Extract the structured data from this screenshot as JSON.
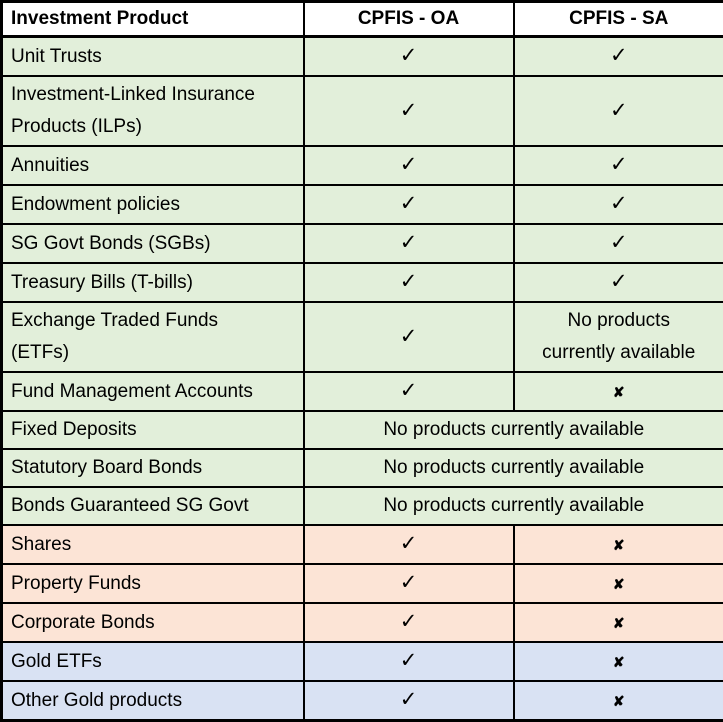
{
  "title": "CPFIS investment product availability table",
  "colors": {
    "green": "#e2efda",
    "orange": "#fce4d6",
    "blue": "#d9e2f3",
    "header_bg": "#ffffff",
    "border": "#000000",
    "text": "#000000"
  },
  "symbols": {
    "check": "✓",
    "cross": "✘"
  },
  "table": {
    "headers": [
      "Investment Product",
      "CPFIS - OA",
      "CPFIS - SA"
    ],
    "rows": [
      {
        "product": "Unit Trusts",
        "oa": "✓",
        "sa": "✓",
        "section": "green"
      },
      {
        "product": "Investment-Linked Insurance\nProducts (ILPs)",
        "oa": "✓",
        "sa": "✓",
        "section": "green"
      },
      {
        "product": "Annuities",
        "oa": "✓",
        "sa": "✓",
        "section": "green"
      },
      {
        "product": "Endowment policies",
        "oa": "✓",
        "sa": "✓",
        "section": "green"
      },
      {
        "product": "SG Govt Bonds (SGBs)",
        "oa": "✓",
        "sa": "✓",
        "section": "green"
      },
      {
        "product": "Treasury Bills (T-bills)",
        "oa": "✓",
        "sa": "✓",
        "section": "green"
      },
      {
        "product": "Exchange Traded Funds\n(ETFs)",
        "oa": "✓",
        "sa": "No products\ncurrently available",
        "section": "green"
      },
      {
        "product": "Fund Management Accounts",
        "oa": "✓",
        "sa": "✘",
        "section": "green"
      },
      {
        "product": "Fixed Deposits",
        "merged": true,
        "value": "No products currently available",
        "section": "green"
      },
      {
        "product": "Statutory Board Bonds",
        "merged": true,
        "value": "No products currently available",
        "section": "green"
      },
      {
        "product": "Bonds Guaranteed SG Govt",
        "merged": true,
        "value": "No products currently available",
        "section": "green"
      },
      {
        "product": "Shares",
        "oa": "✓",
        "sa": "✘",
        "section": "orange"
      },
      {
        "product": "Property Funds",
        "oa": "✓",
        "sa": "✘",
        "section": "orange"
      },
      {
        "product": "Corporate Bonds",
        "oa": "✓",
        "sa": "✘",
        "section": "orange"
      },
      {
        "product": "Gold ETFs",
        "oa": "✓",
        "sa": "✘",
        "section": "blue"
      },
      {
        "product": "Other Gold products",
        "oa": "✓",
        "sa": "✘",
        "section": "blue"
      }
    ]
  },
  "chart_data": {
    "type": "table",
    "columns": [
      "Investment Product",
      "CPFIS - OA",
      "CPFIS - SA"
    ],
    "rows": [
      [
        "Unit Trusts",
        "✓",
        "✓"
      ],
      [
        "Investment-Linked Insurance Products (ILPs)",
        "✓",
        "✓"
      ],
      [
        "Annuities",
        "✓",
        "✓"
      ],
      [
        "Endowment policies",
        "✓",
        "✓"
      ],
      [
        "SG Govt Bonds (SGBs)",
        "✓",
        "✓"
      ],
      [
        "Treasury Bills (T-bills)",
        "✓",
        "✓"
      ],
      [
        "Exchange Traded Funds (ETFs)",
        "✓",
        "No products currently available"
      ],
      [
        "Fund Management Accounts",
        "✓",
        "✘"
      ],
      [
        "Fixed Deposits",
        "No products currently available",
        "No products currently available"
      ],
      [
        "Statutory Board Bonds",
        "No products currently available",
        "No products currently available"
      ],
      [
        "Bonds Guaranteed SG Govt",
        "No products currently available",
        "No products currently available"
      ],
      [
        "Shares",
        "✓",
        "✘"
      ],
      [
        "Property Funds",
        "✓",
        "✘"
      ],
      [
        "Corporate Bonds",
        "✓",
        "✘"
      ],
      [
        "Gold ETFs",
        "✓",
        "✘"
      ],
      [
        "Other Gold products",
        "✓",
        "✘"
      ]
    ],
    "row_sections": {
      "green": [
        "Unit Trusts",
        "Investment-Linked Insurance Products (ILPs)",
        "Annuities",
        "Endowment policies",
        "SG Govt Bonds (SGBs)",
        "Treasury Bills (T-bills)",
        "Exchange Traded Funds (ETFs)",
        "Fund Management Accounts",
        "Fixed Deposits",
        "Statutory Board Bonds",
        "Bonds Guaranteed SG Govt"
      ],
      "orange": [
        "Shares",
        "Property Funds",
        "Corporate Bonds"
      ],
      "blue": [
        "Gold ETFs",
        "Other Gold products"
      ]
    },
    "legend_position": "none",
    "grid": true
  }
}
